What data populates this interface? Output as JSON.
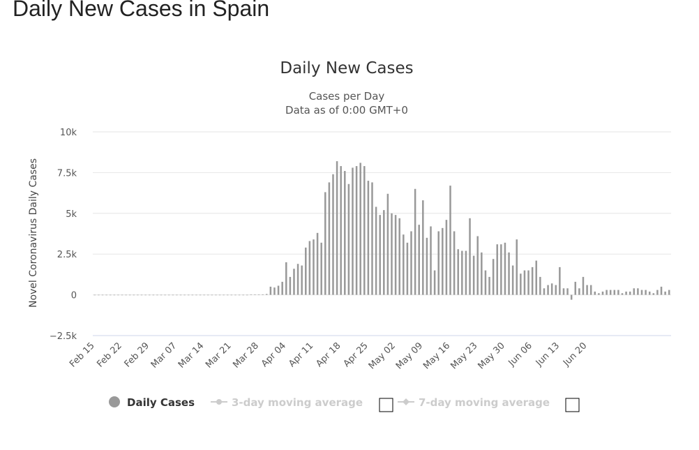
{
  "page": {
    "title": "Daily New Cases in Spain"
  },
  "colors": {
    "bar": "#999999",
    "grid": "#e6e6e6",
    "axis": "#ccd6eb",
    "legend_active": "#333333",
    "legend_inactive": "#cccccc"
  },
  "chart_data": {
    "type": "bar",
    "title": "Daily New Cases",
    "subtitle_lines": [
      "Cases per Day",
      "Data as of 0:00 GMT+0"
    ],
    "xlabel": "",
    "ylabel": "Novel Coronavirus Daily Cases",
    "ylim": [
      -2500,
      10000
    ],
    "yticks": [
      -2500,
      0,
      2500,
      5000,
      7500,
      10000
    ],
    "ytick_labels": [
      "−2.5k",
      "0",
      "2.5k",
      "5k",
      "7.5k",
      "10k"
    ],
    "grid": true,
    "legend_position": "bottom",
    "x_start": "Feb 15",
    "x_end": "Jun 20",
    "xtick_labels": [
      "Feb 15",
      "Feb 22",
      "Feb 29",
      "Mar 07",
      "Mar 14",
      "Mar 21",
      "Mar 28",
      "Apr 04",
      "Apr 11",
      "Apr 18",
      "Apr 25",
      "May 02",
      "May 09",
      "May 16",
      "May 23",
      "May 30",
      "Jun 06",
      "Jun 13",
      "Jun 20"
    ],
    "series": [
      {
        "name": "Daily Cases",
        "values": [
          0,
          0,
          0,
          0,
          0,
          0,
          0,
          0,
          0,
          0,
          0,
          0,
          0,
          0,
          0,
          0,
          0,
          0,
          0,
          0,
          0,
          0,
          0,
          0,
          0,
          0,
          0,
          0,
          0,
          0,
          0,
          0,
          0,
          0,
          0,
          0,
          0,
          0,
          0,
          0,
          20,
          22,
          25,
          30,
          50,
          500,
          450,
          560,
          800,
          2000,
          1100,
          1600,
          1900,
          1800,
          2900,
          3300,
          3400,
          3800,
          3200,
          6300,
          6900,
          7400,
          8200,
          7900,
          7600,
          6800,
          7800,
          7900,
          8100,
          7900,
          7000,
          6900,
          5400,
          4900,
          5200,
          6200,
          5000,
          4900,
          4700,
          3700,
          3200,
          3900,
          6500,
          4300,
          5800,
          3500,
          4200,
          1500,
          3900,
          4100,
          4600,
          6700,
          3900,
          2800,
          2700,
          2700,
          4700,
          2400,
          3600,
          2600,
          1500,
          1100,
          2200,
          3100,
          3100,
          3200,
          2600,
          1800,
          3400,
          1300,
          1500,
          1500,
          1700,
          2100,
          1100,
          400,
          600,
          700,
          600,
          1700,
          400,
          400,
          -300,
          800,
          400,
          1100,
          600,
          600,
          200,
          100,
          200,
          300,
          300,
          300,
          300,
          100,
          200,
          200,
          400,
          400,
          300,
          300,
          200,
          100,
          300,
          500,
          200,
          300
        ]
      },
      {
        "name": "3-day moving average"
      },
      {
        "name": "7-day moving average"
      }
    ]
  }
}
